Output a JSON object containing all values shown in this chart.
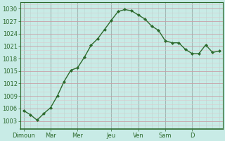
{
  "x_labels": [
    "Dimoun",
    "Mar",
    "Mer",
    "Jeu",
    "Ven",
    "Sam",
    "D"
  ],
  "y_values": [
    1005.5,
    1004.5,
    1003.2,
    1004.8,
    1006.2,
    1009.0,
    1012.5,
    1015.2,
    1015.8,
    1018.3,
    1021.2,
    1022.8,
    1025.0,
    1027.2,
    1029.3,
    1029.8,
    1029.5,
    1028.5,
    1027.5,
    1025.8,
    1024.8,
    1022.3,
    1021.8,
    1021.8,
    1020.2,
    1019.2,
    1019.2,
    1021.3,
    1019.5,
    1019.8
  ],
  "ylim": [
    1001.5,
    1031.5
  ],
  "yticks": [
    1003,
    1006,
    1009,
    1012,
    1015,
    1018,
    1021,
    1024,
    1027,
    1030
  ],
  "line_color": "#2d6a2d",
  "marker_color": "#2d6a2d",
  "bg_color": "#c8ebe6",
  "vgrid_color": "#a0b8b4",
  "hgrid_color": "#c8a0a8",
  "minor_vgrid_color": "#b8d4d0",
  "minor_hgrid_color": "#ddc8cc",
  "axis_color": "#2d6a2d",
  "tick_label_color": "#333333",
  "tick_fontsize": 6.0
}
